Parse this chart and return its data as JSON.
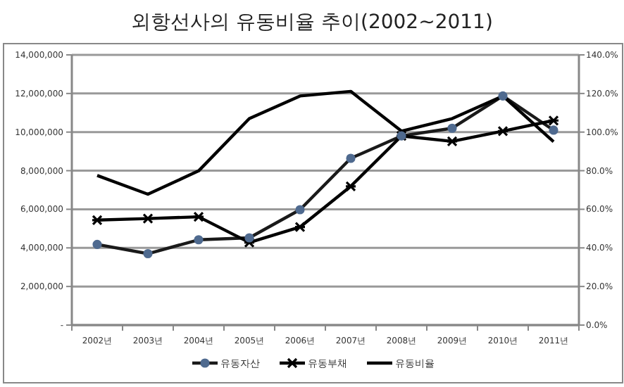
{
  "chart_data": {
    "type": "line",
    "title": "외항선사의 유동비율 추이(2002~2011)",
    "categories": [
      "2002년",
      "2003년",
      "2004년",
      "2005년",
      "2006년",
      "2007년",
      "2008년",
      "2009년",
      "2010년",
      "2011년"
    ],
    "series": [
      {
        "name": "유동자산",
        "color": "#1a1a1a",
        "marker": "circle",
        "values": [
          4180000,
          3700000,
          4420000,
          4520000,
          5980000,
          8640000,
          9800000,
          10200000,
          11870000,
          10100000
        ]
      },
      {
        "name": "유동부채",
        "color": "#000000",
        "marker": "cross",
        "values": [
          5440000,
          5520000,
          5610000,
          4280000,
          5080000,
          7190000,
          9800000,
          9520000,
          10050000,
          10600000
        ]
      },
      {
        "name": "유동비율",
        "color": "#000000",
        "marker": "none",
        "axis": "y2",
        "values": [
          77.5,
          67.8,
          79.9,
          107,
          118.7,
          121.1,
          100.5,
          107,
          118.7,
          95
        ]
      }
    ],
    "ylim": [
      0,
      14000000
    ],
    "yticks": [
      {
        "value": 0,
        "label": "-"
      },
      {
        "value": 2000000,
        "label": "2,000,000"
      },
      {
        "value": 4000000,
        "label": "4,000,000"
      },
      {
        "value": 6000000,
        "label": "6,000,000"
      },
      {
        "value": 8000000,
        "label": "8,000,000"
      },
      {
        "value": 10000000,
        "label": "10,000,000"
      },
      {
        "value": 12000000,
        "label": "12,000,000"
      },
      {
        "value": 14000000,
        "label": "14,000,000"
      }
    ],
    "y2lim": [
      0,
      140
    ],
    "y2ticks": [
      {
        "value": 0,
        "label": "0.0%"
      },
      {
        "value": 20,
        "label": "20.0%"
      },
      {
        "value": 40,
        "label": "40.0%"
      },
      {
        "value": 60,
        "label": "60.0%"
      },
      {
        "value": 80,
        "label": "80.0%"
      },
      {
        "value": 100,
        "label": "100.0%"
      },
      {
        "value": 120,
        "label": "120.0%"
      },
      {
        "value": 140,
        "label": "140.0%"
      }
    ],
    "grid": "y",
    "legend": "bottom",
    "line_style": "solid"
  }
}
